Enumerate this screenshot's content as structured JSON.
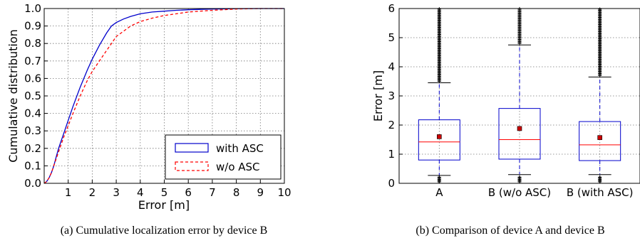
{
  "chart_data": [
    {
      "type": "line",
      "caption": "(a) Cumulative localization error by device B",
      "xlabel": "Error [m]",
      "ylabel": "Cumulative distribution",
      "xlim": [
        0,
        10
      ],
      "ylim": [
        0,
        1
      ],
      "xticks": [
        1,
        2,
        3,
        4,
        5,
        6,
        7,
        8,
        9,
        10
      ],
      "yticks": [
        "0.0",
        "0.1",
        "0.2",
        "0.3",
        "0.4",
        "0.5",
        "0.6",
        "0.7",
        "0.8",
        "0.9",
        "1.0"
      ],
      "grid": true,
      "legend_position": "bottom-right",
      "series": [
        {
          "name": "with ASC",
          "color": "#0000cc",
          "style": "solid",
          "x": [
            0,
            0.1,
            0.2,
            0.3,
            0.4,
            0.5,
            0.6,
            0.8,
            1.0,
            1.2,
            1.5,
            1.8,
            2.0,
            2.3,
            2.6,
            2.8,
            3.0,
            3.3,
            3.6,
            4.0,
            4.5,
            5.0,
            5.5,
            6.0,
            7.0,
            8.0,
            9.0,
            10.0
          ],
          "y": [
            0,
            0.01,
            0.03,
            0.06,
            0.1,
            0.15,
            0.2,
            0.28,
            0.36,
            0.44,
            0.55,
            0.65,
            0.71,
            0.79,
            0.86,
            0.9,
            0.92,
            0.94,
            0.955,
            0.97,
            0.98,
            0.985,
            0.99,
            0.993,
            0.997,
            0.999,
            1.0,
            1.0
          ]
        },
        {
          "name": "w/o ASC",
          "color": "#ff0000",
          "style": "dashed",
          "x": [
            0,
            0.1,
            0.2,
            0.3,
            0.4,
            0.5,
            0.6,
            0.8,
            1.0,
            1.2,
            1.5,
            1.8,
            2.0,
            2.3,
            2.6,
            2.8,
            3.0,
            3.3,
            3.6,
            4.0,
            4.5,
            5.0,
            5.5,
            6.0,
            7.0,
            8.0,
            9.0,
            10.0
          ],
          "y": [
            0,
            0.01,
            0.03,
            0.06,
            0.1,
            0.14,
            0.18,
            0.26,
            0.33,
            0.4,
            0.5,
            0.59,
            0.64,
            0.7,
            0.76,
            0.8,
            0.84,
            0.87,
            0.9,
            0.925,
            0.945,
            0.96,
            0.97,
            0.98,
            0.99,
            0.997,
            1.0,
            1.0
          ]
        }
      ]
    },
    {
      "type": "box",
      "caption": "(b) Comparison of device A and device B",
      "ylabel": "Error [m]",
      "ylim": [
        0,
        6
      ],
      "yticks": [
        "0",
        "1",
        "2",
        "3",
        "4",
        "5",
        "6"
      ],
      "grid": true,
      "categories": [
        "A",
        "B (w/o ASC)",
        "B (with ASC)"
      ],
      "boxes": [
        {
          "whisker_low": 0.27,
          "q1": 0.8,
          "median": 1.42,
          "q3": 2.18,
          "whisker_high": 3.45,
          "mean": 1.6,
          "outliers_low": [
            0.1,
            0.2
          ],
          "outliers_high_from": 3.5
        },
        {
          "whisker_low": 0.3,
          "q1": 0.83,
          "median": 1.5,
          "q3": 2.57,
          "whisker_high": 4.75,
          "mean": 1.88,
          "outliers_low": [
            0.1,
            0.2
          ],
          "outliers_high_from": 4.8
        },
        {
          "whisker_low": 0.3,
          "q1": 0.78,
          "median": 1.32,
          "q3": 2.12,
          "whisker_high": 3.65,
          "mean": 1.57,
          "outliers_low": [
            0.1,
            0.2
          ],
          "outliers_high_from": 3.7
        }
      ],
      "colors": {
        "box": "#0000cc",
        "median": "#ff0000",
        "mean": "#cc0000",
        "outlier": "#000000"
      }
    }
  ]
}
